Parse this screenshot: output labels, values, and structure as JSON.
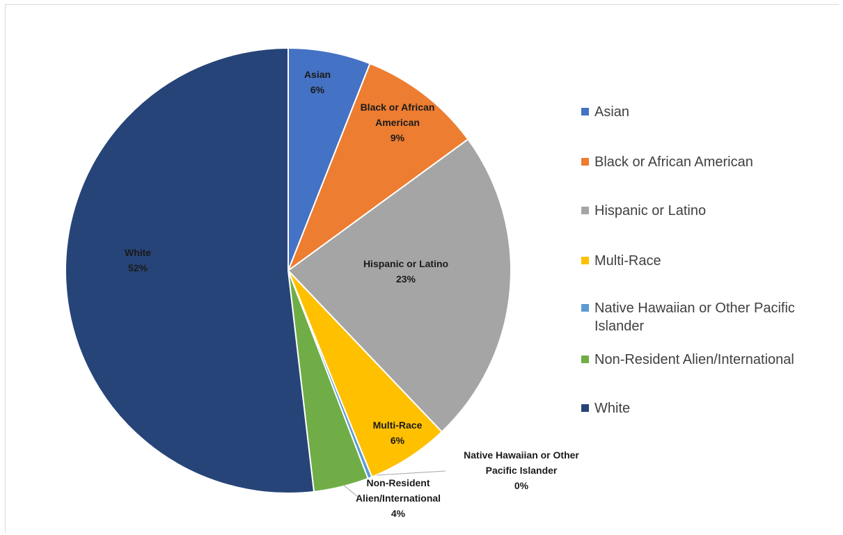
{
  "chart_data": {
    "type": "pie",
    "title": "",
    "start_angle_deg": 0,
    "direction": "clockwise",
    "legend_position": "right",
    "slices": [
      {
        "name": "Asian",
        "value": 6,
        "label": [
          "Asian",
          "6%"
        ],
        "color": "#4472c4"
      },
      {
        "name": "Black or African American",
        "value": 9,
        "label": [
          "Black or African",
          "American",
          "9%"
        ],
        "color": "#ed7d31"
      },
      {
        "name": "Hispanic or Latino",
        "value": 23,
        "label": [
          "Hispanic or Latino",
          "23%"
        ],
        "color": "#a5a5a5"
      },
      {
        "name": "Multi-Race",
        "value": 6,
        "label": [
          "Multi-Race",
          "6%"
        ],
        "color": "#ffc000"
      },
      {
        "name": "Native Hawaiian or Other Pacific Islander",
        "value": 0.3,
        "label": [
          "Native Hawaiian or Other",
          "Pacific Islander",
          "0%"
        ],
        "color": "#5b9bd5"
      },
      {
        "name": "Non-Resident Alien/International",
        "value": 4,
        "label": [
          "Non-Resident",
          "Alien/International",
          "4%"
        ],
        "color": "#70ad47"
      },
      {
        "name": "White",
        "value": 52,
        "label": [
          "White",
          "52%"
        ],
        "color": "#264478"
      }
    ],
    "legend": [
      {
        "label": "Asian",
        "color": "#4472c4"
      },
      {
        "label": "Black or African American",
        "color": "#ed7d31"
      },
      {
        "label": "Hispanic or Latino",
        "color": "#a5a5a5"
      },
      {
        "label": "Multi-Race",
        "color": "#ffc000"
      },
      {
        "label": "Native Hawaiian or Other Pacific Islander",
        "color": "#5b9bd5"
      },
      {
        "label": "Non-Resident Alien/International",
        "color": "#70ad47"
      },
      {
        "label": "White",
        "color": "#264478"
      }
    ]
  }
}
